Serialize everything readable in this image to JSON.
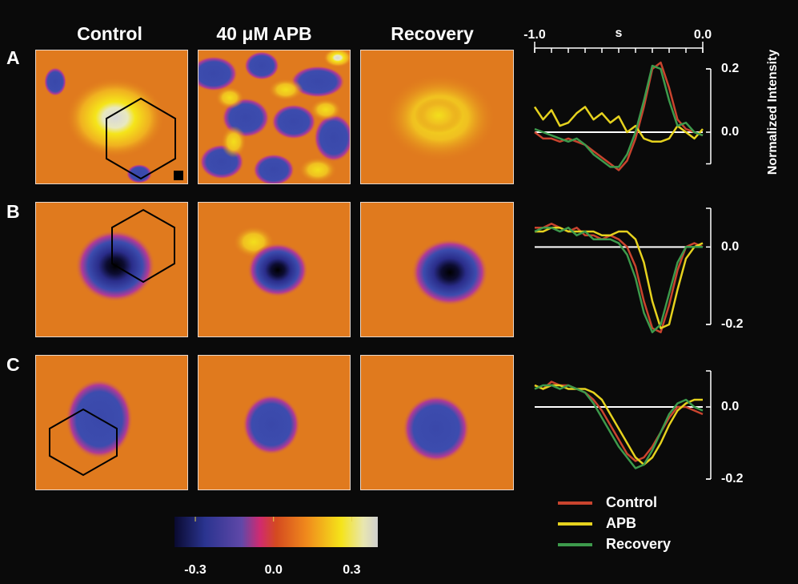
{
  "column_titles": [
    "Control",
    "40 μM APB",
    "Recovery"
  ],
  "row_labels": [
    "A",
    "B",
    "C"
  ],
  "colorbar": {
    "lim": [
      -0.38,
      0.4
    ],
    "ticks": [
      -0.3,
      {
        "value": 0,
        "label": "0.0"
      },
      0.3
    ]
  },
  "chart_data": [
    {
      "type": "line",
      "xlabel": "s",
      "ylabel": "Normalized Intensity",
      "x": [
        -1.0,
        -0.95,
        -0.9,
        -0.85,
        -0.8,
        -0.75,
        -0.7,
        -0.65,
        -0.6,
        -0.55,
        -0.5,
        -0.45,
        -0.4,
        -0.35,
        -0.3,
        -0.25,
        -0.2,
        -0.15,
        -0.1,
        -0.05,
        0.0
      ],
      "xlim": [
        -1,
        0
      ],
      "xticks": [
        {
          "value": -1,
          "label": "-1.0"
        },
        {
          "value": 0,
          "label": "0.0"
        }
      ],
      "ylim": [
        -0.1,
        0.2
      ],
      "yticks": [
        0.2,
        {
          "value": 0,
          "label": "0.0"
        }
      ],
      "series": [
        {
          "name": "Control",
          "color": "#c9442e",
          "values": [
            0,
            -0.02,
            -0.02,
            -0.03,
            -0.02,
            -0.03,
            -0.04,
            -0.06,
            -0.08,
            -0.1,
            -0.12,
            -0.09,
            -0.02,
            0.08,
            0.2,
            0.22,
            0.14,
            0.04,
            0.01,
            0.0,
            -0.01
          ]
        },
        {
          "name": "APB",
          "color": "#e6d21e",
          "values": [
            0.08,
            0.04,
            0.07,
            0.02,
            0.03,
            0.06,
            0.08,
            0.04,
            0.06,
            0.03,
            0.05,
            0.0,
            0.02,
            -0.02,
            -0.03,
            -0.03,
            -0.02,
            0.02,
            0.0,
            -0.02,
            0.01
          ]
        },
        {
          "name": "Recovery",
          "color": "#3d9a4c",
          "values": [
            0.01,
            0,
            -0.01,
            -0.02,
            -0.03,
            -0.02,
            -0.04,
            -0.07,
            -0.09,
            -0.11,
            -0.11,
            -0.07,
            0.0,
            0.1,
            0.21,
            0.2,
            0.1,
            0.02,
            0.03,
            0.0,
            -0.01
          ]
        }
      ]
    },
    {
      "type": "line",
      "ylim": [
        -0.2,
        0.1
      ],
      "yticks": [
        {
          "value": 0,
          "label": "0.0"
        },
        -0.2
      ],
      "series": [
        {
          "color": "#c9442e",
          "values": [
            0.05,
            0.05,
            0.06,
            0.05,
            0.04,
            0.05,
            0.03,
            0.03,
            0.02,
            0.03,
            0.02,
            0.0,
            -0.05,
            -0.14,
            -0.21,
            -0.22,
            -0.15,
            -0.06,
            0.0,
            0.01,
            0.0
          ]
        },
        {
          "color": "#e6d21e",
          "values": [
            0.04,
            0.04,
            0.05,
            0.05,
            0.04,
            0.04,
            0.04,
            0.04,
            0.03,
            0.03,
            0.04,
            0.04,
            0.02,
            -0.04,
            -0.14,
            -0.21,
            -0.2,
            -0.11,
            -0.03,
            0.0,
            0.01
          ]
        },
        {
          "color": "#3d9a4c",
          "values": [
            0.04,
            0.05,
            0.05,
            0.04,
            0.05,
            0.03,
            0.04,
            0.02,
            0.02,
            0.02,
            0.01,
            -0.02,
            -0.08,
            -0.17,
            -0.22,
            -0.2,
            -0.12,
            -0.04,
            0.0,
            0.0,
            0.0
          ]
        }
      ]
    },
    {
      "type": "line",
      "ylim": [
        -0.2,
        0.1
      ],
      "yticks": [
        {
          "value": 0,
          "label": "0.0"
        },
        -0.2
      ],
      "series": [
        {
          "color": "#c9442e",
          "values": [
            0.06,
            0.05,
            0.07,
            0.06,
            0.06,
            0.05,
            0.04,
            0.02,
            -0.01,
            -0.05,
            -0.09,
            -0.13,
            -0.15,
            -0.14,
            -0.11,
            -0.07,
            -0.03,
            0.0,
            0.0,
            -0.01,
            -0.02
          ]
        },
        {
          "color": "#e6d21e",
          "values": [
            0.06,
            0.05,
            0.06,
            0.06,
            0.05,
            0.05,
            0.05,
            0.04,
            0.02,
            -0.02,
            -0.06,
            -0.1,
            -0.14,
            -0.16,
            -0.14,
            -0.1,
            -0.05,
            -0.01,
            0.01,
            0.02,
            0.02
          ]
        },
        {
          "color": "#3d9a4c",
          "values": [
            0.05,
            0.06,
            0.06,
            0.05,
            0.06,
            0.05,
            0.04,
            0.01,
            -0.03,
            -0.07,
            -0.11,
            -0.14,
            -0.17,
            -0.16,
            -0.12,
            -0.07,
            -0.02,
            0.01,
            0.02,
            0.0,
            -0.01
          ]
        }
      ]
    }
  ]
}
